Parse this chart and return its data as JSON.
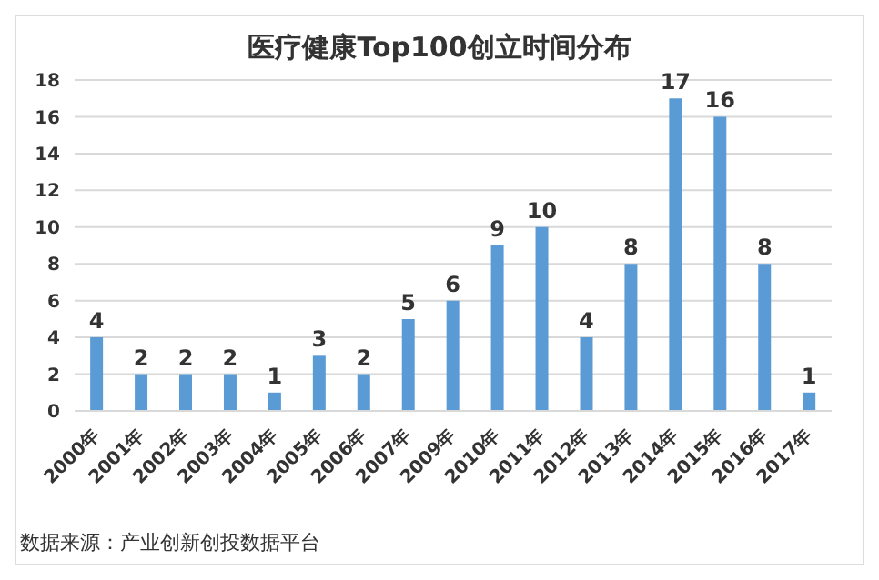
{
  "chart_data": {
    "type": "bar",
    "title": "医疗健康Top100创立时间分布",
    "categories": [
      "2000年",
      "2001年",
      "2002年",
      "2003年",
      "2004年",
      "2005年",
      "2006年",
      "2007年",
      "2009年",
      "2010年",
      "2011年",
      "2012年",
      "2013年",
      "2014年",
      "2015年",
      "2016年",
      "2017年"
    ],
    "values": [
      4,
      2,
      2,
      2,
      1,
      3,
      2,
      5,
      6,
      9,
      10,
      4,
      8,
      17,
      16,
      8,
      1
    ],
    "color": "#5b9bd5",
    "ylim": [
      0,
      18
    ],
    "yticks": [
      0,
      2,
      4,
      6,
      8,
      10,
      12,
      14,
      16,
      18
    ],
    "grid": "y",
    "data_labels": true,
    "annotations": [
      "数据来源：产业创新创投数据平台"
    ]
  }
}
